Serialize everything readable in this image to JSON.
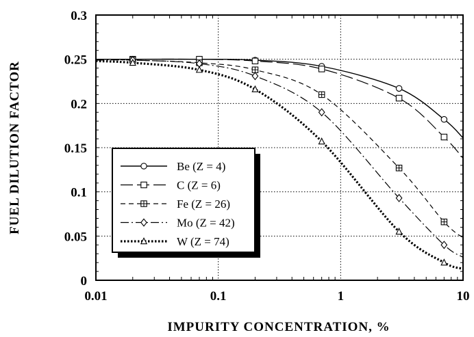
{
  "chart_data": {
    "type": "line",
    "title": "",
    "xlabel": "IMPURITY CONCENTRATION, %",
    "ylabel": "FUEL DILUTION FACTOR",
    "x_scale": "log",
    "xlim": [
      0.01,
      10
    ],
    "ylim": [
      0,
      0.3
    ],
    "grid": true,
    "x_ticks": [
      "0.01",
      "0.1",
      "1",
      "10"
    ],
    "y_ticks": [
      "0",
      "0.05",
      "0.1",
      "0.15",
      "0.2",
      "0.25",
      "0.3"
    ],
    "legend_position": "lower-left",
    "series": [
      {
        "name": "Be (Z = 4)",
        "line_style": "solid",
        "marker": "circle",
        "x": [
          0.01,
          0.02,
          0.07,
          0.2,
          0.7,
          3,
          7,
          10
        ],
        "y": [
          0.25,
          0.25,
          0.25,
          0.249,
          0.242,
          0.217,
          0.182,
          0.161
        ]
      },
      {
        "name": "C (Z = 6)",
        "line_style": "long-dash",
        "marker": "square",
        "x": [
          0.01,
          0.02,
          0.07,
          0.2,
          0.7,
          3,
          7,
          10
        ],
        "y": [
          0.25,
          0.25,
          0.25,
          0.248,
          0.239,
          0.206,
          0.162,
          0.138
        ]
      },
      {
        "name": "Fe (Z = 26)",
        "line_style": "short-dash",
        "marker": "square-plus",
        "x": [
          0.01,
          0.02,
          0.07,
          0.2,
          0.7,
          3,
          7,
          10
        ],
        "y": [
          0.25,
          0.249,
          0.246,
          0.238,
          0.21,
          0.127,
          0.066,
          0.048
        ]
      },
      {
        "name": "Mo (Z = 42)",
        "line_style": "dash-dot",
        "marker": "diamond",
        "x": [
          0.01,
          0.02,
          0.07,
          0.2,
          0.7,
          3,
          7,
          10
        ],
        "y": [
          0.249,
          0.249,
          0.245,
          0.231,
          0.19,
          0.093,
          0.04,
          0.026
        ]
      },
      {
        "name": "W (Z = 74)",
        "line_style": "heavy-dotted",
        "marker": "triangle",
        "x": [
          0.01,
          0.02,
          0.07,
          0.2,
          0.7,
          3,
          7,
          10
        ],
        "y": [
          0.248,
          0.246,
          0.238,
          0.216,
          0.157,
          0.055,
          0.02,
          0.013
        ]
      }
    ]
  }
}
